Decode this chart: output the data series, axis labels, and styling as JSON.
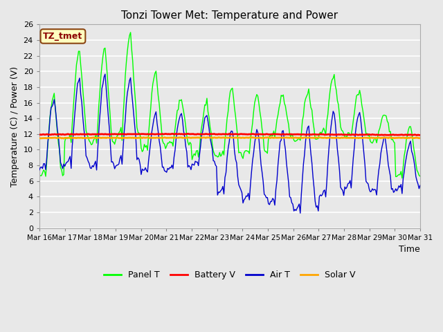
{
  "title": "Tonzi Tower Met: Temperature and Power",
  "xlabel": "Time",
  "ylabel": "Temperature (C) / Power (V)",
  "ylim": [
    0,
    26
  ],
  "yticks": [
    0,
    2,
    4,
    6,
    8,
    10,
    12,
    14,
    16,
    18,
    20,
    22,
    24,
    26
  ],
  "xtick_labels": [
    "Mar 16",
    "Mar 17",
    "Mar 18",
    "Mar 19",
    "Mar 20",
    "Mar 21",
    "Mar 22",
    "Mar 23",
    "Mar 24",
    "Mar 25",
    "Mar 26",
    "Mar 27",
    "Mar 28",
    "Mar 29",
    "Mar 30",
    "Mar 31"
  ],
  "annotation_text": "TZ_tmet",
  "annotation_color": "#8B0000",
  "annotation_bg": "#FFFFC0",
  "annotation_border": "#8B4513",
  "bg_color": "#E8E8E8",
  "plot_bg": "#E8E8E8",
  "grid_color": "#FFFFFF",
  "panel_t_color": "#00FF00",
  "battery_v_color": "#FF0000",
  "air_t_color": "#0000CC",
  "solar_v_color": "#FFA500",
  "battery_v_value": 11.95,
  "solar_v_value": 11.5
}
